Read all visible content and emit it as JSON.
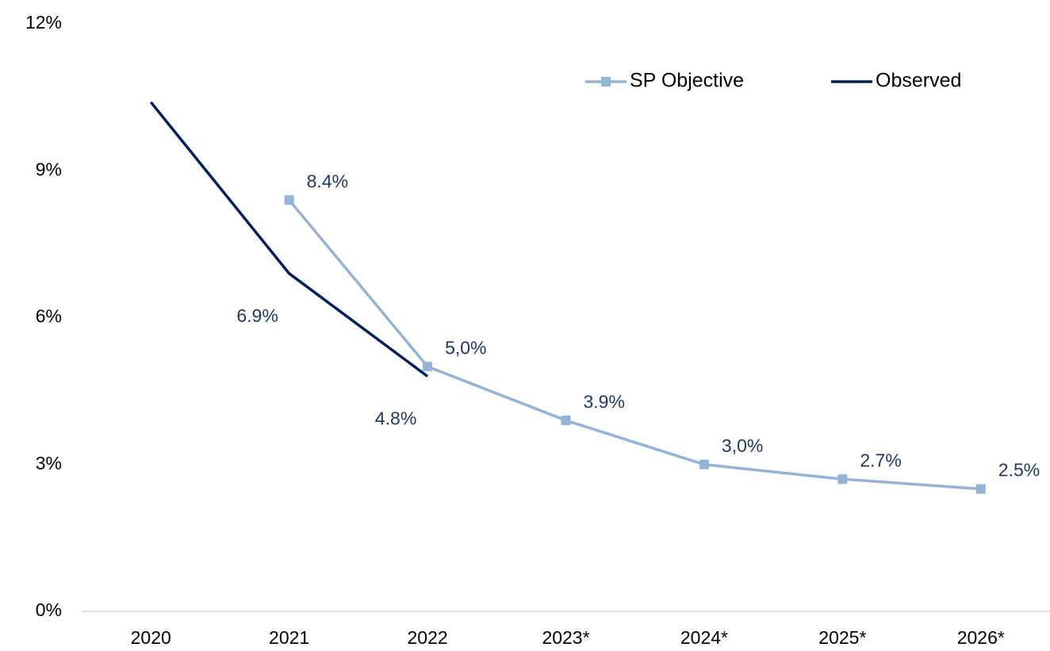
{
  "chart_data": {
    "type": "line",
    "categories": [
      "2020",
      "2021",
      "2022",
      "2023*",
      "2024*",
      "2025*",
      "2026*"
    ],
    "series": [
      {
        "name": "SP Objective",
        "color": "#95b3d7",
        "marker": "square",
        "values": [
          null,
          8.4,
          5.0,
          3.9,
          3.0,
          2.7,
          2.5
        ],
        "value_labels": [
          null,
          "8.4%",
          "5,0%",
          "3.9%",
          "3,0%",
          "2.7%",
          "2.5%"
        ]
      },
      {
        "name": "Observed",
        "color": "#002060",
        "values": [
          10.4,
          6.9,
          4.8,
          null,
          null,
          null,
          null
        ],
        "value_labels": [
          null,
          "6.9%",
          "4.8%",
          null,
          null,
          null,
          null
        ]
      }
    ],
    "ylim": [
      0,
      12
    ],
    "yticks": [
      {
        "value": 0,
        "label": "0%"
      },
      {
        "value": 3,
        "label": "3%"
      },
      {
        "value": 6,
        "label": "6%"
      },
      {
        "value": 9,
        "label": "9%"
      },
      {
        "value": 12,
        "label": "12%"
      }
    ],
    "grid": false,
    "legend": "top-right"
  }
}
